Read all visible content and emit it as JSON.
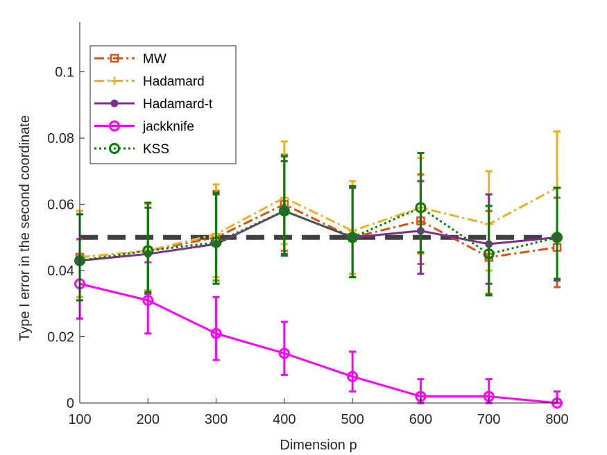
{
  "chart_data": {
    "type": "line",
    "xlabel": "Dimension p",
    "ylabel": "Type I error in the second coordinate",
    "xlim": [
      100,
      800
    ],
    "ylim": [
      0,
      0.115
    ],
    "x": [
      100,
      200,
      300,
      400,
      500,
      600,
      700,
      800
    ],
    "xticks": [
      "100",
      "200",
      "300",
      "400",
      "500",
      "600",
      "700",
      "800"
    ],
    "yticks": [
      0,
      0.02,
      0.04,
      0.06,
      0.08,
      0.1
    ],
    "ytick_labels": [
      "0",
      "0.02",
      "0.04",
      "0.06",
      "0.08",
      "0.1"
    ],
    "reference_line": {
      "y": 0.05,
      "color": "#404040",
      "style": "dashed"
    },
    "legend_position": "top-left",
    "series": [
      {
        "name": "MW",
        "color": "#D95319",
        "style": "dashdot",
        "marker": "square",
        "values": [
          0.044,
          0.046,
          0.05,
          0.06,
          0.05,
          0.055,
          0.044,
          0.047
        ],
        "err_low": [
          0.032,
          0.034,
          0.037,
          0.046,
          0.039,
          0.042,
          0.033,
          0.035
        ],
        "err_high": [
          0.058,
          0.06,
          0.064,
          0.075,
          0.065,
          0.069,
          0.058,
          0.062
        ]
      },
      {
        "name": "Hadamard",
        "color": "#EDB120",
        "style": "dashdot",
        "marker": "plus",
        "values": [
          0.044,
          0.046,
          0.051,
          0.062,
          0.052,
          0.059,
          0.054,
          0.065
        ],
        "err_low": [
          0.032,
          0.034,
          0.038,
          0.048,
          0.039,
          0.045,
          0.04,
          0.05
        ],
        "err_high": [
          0.058,
          0.06,
          0.066,
          0.079,
          0.067,
          0.074,
          0.07,
          0.082
        ]
      },
      {
        "name": "Hadamard-t",
        "color": "#7E2F8E",
        "style": "solid",
        "marker": "dot",
        "values": [
          0.043,
          0.045,
          0.048,
          0.058,
          0.05,
          0.052,
          0.048,
          0.05
        ],
        "err_low": [
          0.031,
          0.033,
          0.036,
          0.045,
          0.038,
          0.039,
          0.036,
          0.037
        ],
        "err_high": [
          0.057,
          0.059,
          0.063,
          0.073,
          0.065,
          0.067,
          0.063,
          0.065
        ]
      },
      {
        "name": "jackknife",
        "color": "#FF00FF",
        "style": "solid",
        "marker": "circle",
        "values": [
          0.036,
          0.031,
          0.021,
          0.015,
          0.008,
          0.002,
          0.002,
          0.0
        ],
        "err_low": [
          0.0255,
          0.021,
          0.013,
          0.0085,
          0.0035,
          0.0,
          0.0,
          0.0
        ],
        "err_high": [
          0.0495,
          0.0425,
          0.032,
          0.0245,
          0.0155,
          0.0072,
          0.0072,
          0.0035
        ]
      },
      {
        "name": "KSS",
        "color": "#008000",
        "style": "dotted",
        "marker": "circle",
        "values": [
          0.043,
          0.046,
          0.0485,
          0.058,
          0.05,
          0.059,
          0.045,
          0.05
        ],
        "err_low": [
          0.031,
          0.0335,
          0.036,
          0.0445,
          0.038,
          0.0455,
          0.0325,
          0.0375
        ],
        "err_high": [
          0.057,
          0.0605,
          0.0635,
          0.0745,
          0.0655,
          0.0755,
          0.0595,
          0.065
        ]
      }
    ]
  }
}
